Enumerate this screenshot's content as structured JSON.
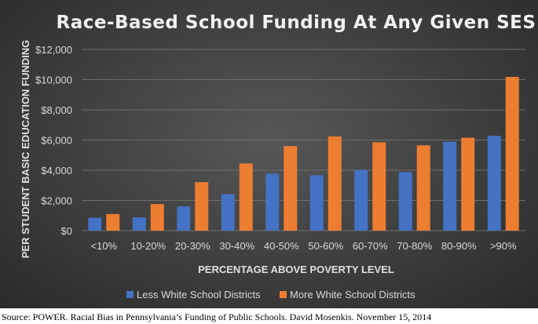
{
  "chart_data": {
    "type": "bar",
    "title": "Race-Based School Funding At Any Given SES",
    "xlabel": "PERCENTAGE ABOVE POVERTY LEVEL",
    "ylabel": "PER STUDENT BASIC EDUCATION FUNDING",
    "categories": [
      "<10%",
      "10-20%",
      "20-30%",
      "30-40%",
      "40-50%",
      "50-60%",
      "60-70%",
      "70-80%",
      "80-90%",
      ">90%"
    ],
    "series": [
      {
        "name": "Less White School Districts",
        "color": "#4472c4",
        "values": [
          850,
          880,
          1600,
          2420,
          3770,
          3670,
          4020,
          3880,
          5890,
          6280
        ]
      },
      {
        "name": "More White School Districts",
        "color": "#ed7d31",
        "values": [
          1100,
          1760,
          3210,
          4450,
          5600,
          6240,
          5850,
          5650,
          6150,
          10180
        ]
      }
    ],
    "ylim": [
      0,
      12000
    ],
    "yticks": [
      0,
      2000,
      4000,
      6000,
      8000,
      10000,
      12000
    ],
    "ytick_labels": [
      "$0",
      "$2,000",
      "$4,000",
      "$6,000",
      "$8,000",
      "$10,000",
      "$12,000"
    ],
    "grid": true,
    "legend_position": "bottom"
  },
  "source": "Source: POWER. Racial Bias in Pennsylvania’s Funding of Public Schools. David Mosenkis. November 15, 2014"
}
